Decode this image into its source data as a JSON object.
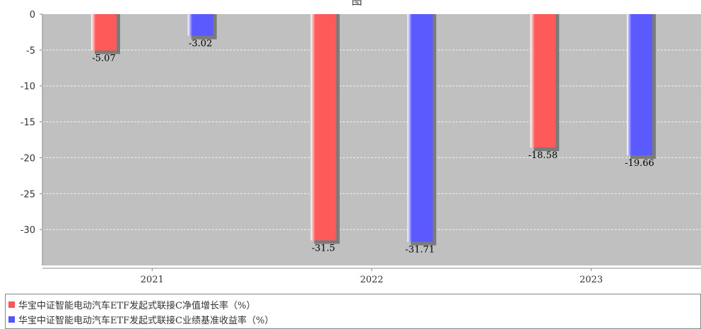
{
  "chart_data": {
    "type": "bar",
    "title": "图",
    "categories": [
      "2021",
      "2022",
      "2023"
    ],
    "series": [
      {
        "name": "华宝中证智能电动汽车ETF发起式联接C净值增长率（%）",
        "values": [
          -5.07,
          -31.5,
          -18.58
        ],
        "color": "#ff5555"
      },
      {
        "name": "华宝中证智能电动汽车ETF发起式联接C业绩基准收益率（%）",
        "values": [
          -3.02,
          -31.71,
          -19.66
        ],
        "color": "#5555ff"
      }
    ],
    "ylim": [
      -35,
      0
    ],
    "yticks": [
      0,
      -5,
      -10,
      -15,
      -20,
      -25,
      -30
    ],
    "grid": true,
    "legend_position": "bottom",
    "plot_background": "#c0c0c0"
  }
}
